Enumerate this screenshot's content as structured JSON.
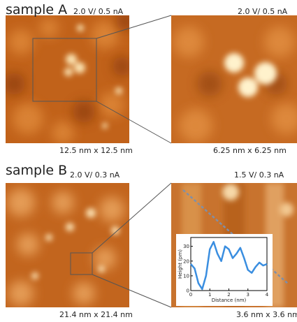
{
  "panels": [
    {
      "label": "sample A",
      "left_bias": "2.0 V/ 0.5 nA",
      "right_bias": "2.0 V/ 0.5 nA",
      "left_size": "12.5 nm x 12.5 nm",
      "right_size": "6.25 nm x 6.25 nm"
    },
    {
      "label": "sample B",
      "left_bias": "2.0 V/ 0.3 nA",
      "right_bias": "1.5 V/ 0.3 nA",
      "left_size": "21.4 nm x 21.4 nm",
      "right_size": "3.6 nm x 3.6 nm"
    }
  ],
  "chart_data": {
    "type": "line",
    "xlabel": "Distance (nm)",
    "ylabel": "Height (pm)",
    "x": [
      0,
      0.2,
      0.4,
      0.6,
      0.8,
      1.0,
      1.2,
      1.4,
      1.6,
      1.8,
      2.0,
      2.2,
      2.4,
      2.6,
      2.8,
      3.0,
      3.2,
      3.4,
      3.6,
      3.8,
      4.0
    ],
    "series": [
      {
        "color": "#3a8ee0",
        "values": [
          18,
          15,
          5,
          1,
          10,
          28,
          33,
          25,
          20,
          30,
          28,
          22,
          25,
          29,
          22,
          14,
          12,
          16,
          19,
          17,
          18
        ]
      }
    ],
    "xlim": [
      0,
      4
    ],
    "ylim": [
      0,
      36
    ],
    "xticks": [
      0,
      1,
      2,
      3,
      4
    ],
    "yticks": [
      0,
      10,
      20,
      30
    ]
  }
}
